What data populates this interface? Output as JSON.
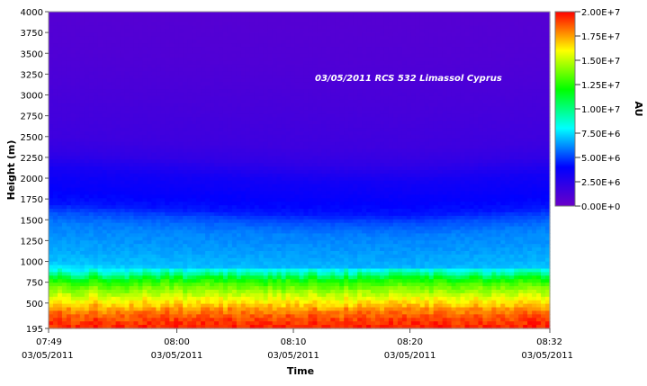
{
  "chart_data": {
    "type": "heatmap",
    "title": "",
    "annotation": "03/05/2011 RCS 532 Limassol Cyprus",
    "xlabel": "Time",
    "ylabel": "Height (m)",
    "colorbar_label": "AU",
    "x_ticks": [
      {
        "time": "07:49",
        "date": "03/05/2011"
      },
      {
        "time": "08:00",
        "date": "03/05/2011"
      },
      {
        "time": "08:10",
        "date": "03/05/2011"
      },
      {
        "time": "08:20",
        "date": "03/05/2011"
      },
      {
        "time": "08:32",
        "date": "03/05/2011"
      }
    ],
    "x_range": [
      "07:49",
      "08:32"
    ],
    "y_ticks": [
      "195",
      "500",
      "750",
      "1000",
      "1250",
      "1500",
      "1750",
      "2000",
      "2250",
      "2500",
      "2750",
      "3000",
      "3250",
      "3500",
      "3750",
      "4000"
    ],
    "y_range": [
      195,
      4000
    ],
    "colorbar_ticks": [
      "2.00E+7",
      "1.75E+7",
      "1.50E+7",
      "1.25E+7",
      "1.00E+7",
      "7.50E+6",
      "5.00E+6",
      "2.50E+6",
      "0.00E+0"
    ],
    "colorbar_range": [
      0,
      20000000
    ],
    "colormap": [
      "#6a00c8",
      "#0000ff",
      "#00ffff",
      "#00ff00",
      "#ffff00",
      "#ff0000"
    ],
    "profile_height_m": [
      195,
      300,
      400,
      500,
      600,
      700,
      760,
      800,
      850,
      900,
      1000,
      1200,
      1450,
      1600,
      1700,
      1900,
      2100,
      2300,
      2500,
      3000,
      3500,
      4000
    ],
    "profile_value_au": [
      19500000,
      19000000,
      18000000,
      16500000,
      15000000,
      13500000,
      12500000,
      11500000,
      9500000,
      8000000,
      7000000,
      6500000,
      6000000,
      5200000,
      4300000,
      3800000,
      3300000,
      2200000,
      1700000,
      1300000,
      1000000,
      800000
    ],
    "layer_top_m_by_time": [
      {
        "time": "07:49",
        "height": 2130
      },
      {
        "time": "08:00",
        "height": 2060
      },
      {
        "time": "08:10",
        "height": 2000
      },
      {
        "time": "08:20",
        "height": 1980
      },
      {
        "time": "08:32",
        "height": 2080
      }
    ],
    "grid": false,
    "legend": "colorbar-right"
  }
}
